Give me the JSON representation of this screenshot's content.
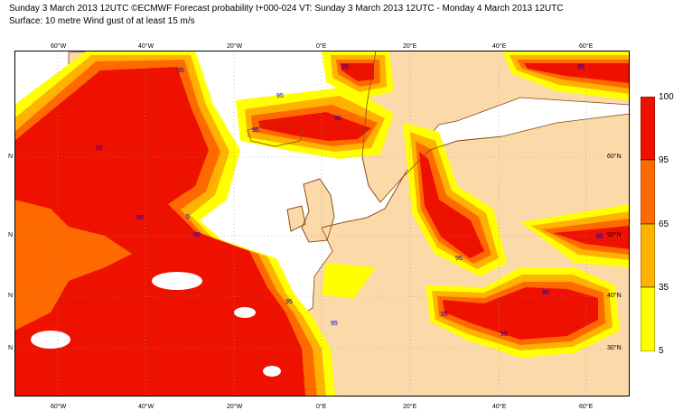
{
  "header": {
    "title": "Sunday 3 March 2013 12UTC ©ECMWF Forecast probability t+000-024 VT: Sunday 3 March 2013 12UTC - Monday 4 March 2013 12UTC",
    "subtitle": "Surface: 10 metre Wind gust of at least 15 m/s"
  },
  "map": {
    "lon_ticks": [
      "60°W",
      "40°W",
      "20°W",
      "0°E",
      "20°E",
      "40°E",
      "60°E"
    ],
    "lat_ticks_left": [
      "N",
      "N",
      "N",
      "N"
    ],
    "lat_ticks_right": [
      "60°N",
      "50°N",
      "40°N",
      "30°N"
    ],
    "colors": {
      "land": "#fcd9a8",
      "sea": "#ffffff",
      "coast": "#8b4513",
      "grid": "#9a9a9a",
      "p5": "#ffff00",
      "p35": "#ffb300",
      "p65": "#ff6a00",
      "p95": "#ee1100",
      "label": "#0000cc"
    },
    "contour_labels": [
      "95",
      "95",
      "95",
      "5",
      "95",
      "95",
      "95",
      "95",
      "95",
      "95",
      "95",
      "95",
      "95",
      "95",
      "95",
      "95",
      "95"
    ]
  },
  "legend": {
    "labels": [
      "100",
      "95",
      "65",
      "35",
      "5"
    ],
    "colors": [
      "#ee1100",
      "#ff6a00",
      "#ffb300",
      "#ffff00"
    ]
  }
}
